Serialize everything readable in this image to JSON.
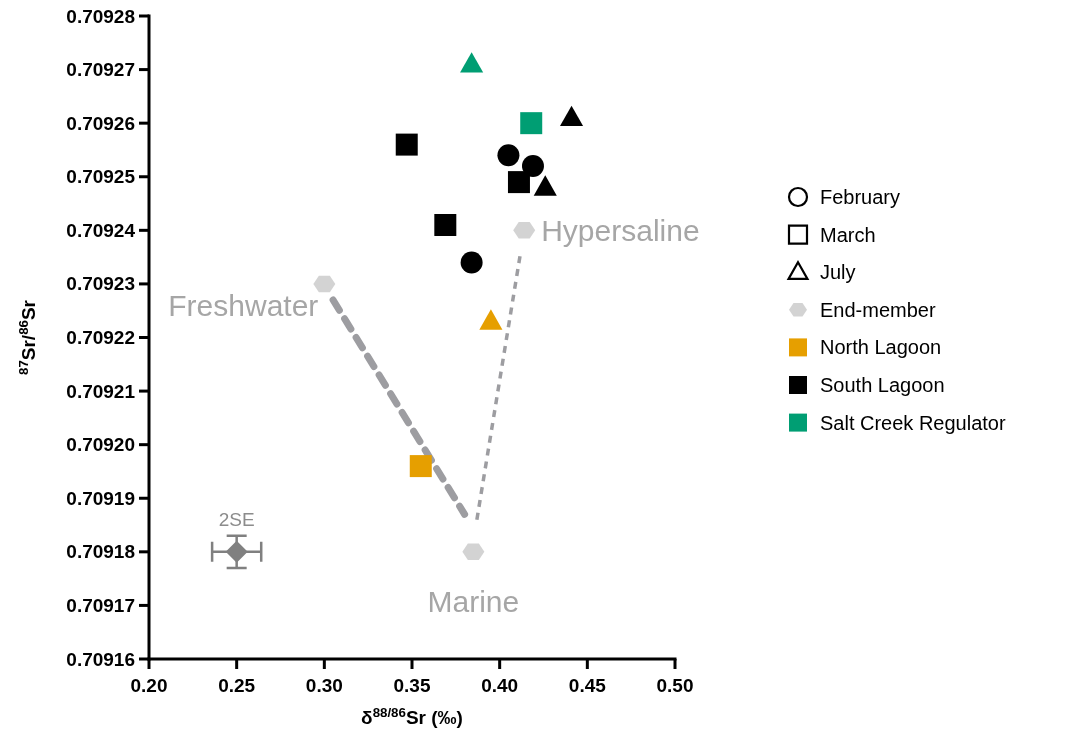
{
  "chart_data": {
    "type": "scatter",
    "xlabel": "δ$^{88/86}$Sr (‰)",
    "ylabel": "$^{87}$Sr/$^{86}$Sr",
    "xlim": [
      0.2,
      0.5
    ],
    "xticks": [
      {
        "value": 0.2,
        "label": "0.20"
      },
      0.25,
      {
        "value": 0.3,
        "label": "0.30"
      },
      0.35,
      {
        "value": 0.4,
        "label": "0.40"
      },
      0.45,
      {
        "value": 0.5,
        "label": "0.50"
      }
    ],
    "ylim": [
      0.70916,
      0.70928
    ],
    "yticks": [
      0.70916,
      0.70917,
      0.70918,
      0.70919,
      {
        "value": 0.7092,
        "label": "0.70920"
      },
      0.70921,
      0.70922,
      0.70923,
      0.70924,
      0.70925,
      0.70926,
      0.70927,
      0.70928
    ],
    "grid": false,
    "legend": "right",
    "series": [
      {
        "type": "line",
        "line_style": "dashed",
        "color": "#9d9da1",
        "x": [
          0.305,
          0.38
        ],
        "values": [
          0.709227,
          0.709187
        ]
      },
      {
        "type": "line",
        "line_style": "dashed",
        "color": "#9d9da1",
        "x": [
          0.387,
          0.412
        ],
        "values": [
          0.709186,
          0.709236
        ]
      },
      {
        "marker": "circle",
        "color": "#000000",
        "x": [
          0.405,
          0.419,
          0.384
        ],
        "values": [
          0.709254,
          0.709252,
          0.709234
        ]
      },
      {
        "marker": "square",
        "color": "#000000",
        "x": [
          0.347,
          0.411,
          0.369
        ],
        "values": [
          0.709256,
          0.709249,
          0.709241
        ]
      },
      {
        "marker": "triangle",
        "color": "#000000",
        "x": [
          0.441,
          0.426
        ],
        "values": [
          0.709261,
          0.709248
        ]
      },
      {
        "marker": "square",
        "color": "#e69f00",
        "x": [
          0.355
        ],
        "values": [
          0.709196
        ]
      },
      {
        "marker": "triangle",
        "color": "#e69f00",
        "x": [
          0.395
        ],
        "values": [
          0.709223
        ]
      },
      {
        "marker": "square",
        "color": "#009e73",
        "x": [
          0.418
        ],
        "values": [
          0.70926
        ]
      },
      {
        "marker": "triangle",
        "color": "#009e73",
        "x": [
          0.384
        ],
        "values": [
          0.709271
        ]
      },
      {
        "marker": "diamond",
        "color": "#808080",
        "x": [
          0.25
        ],
        "values": [
          0.70918
        ],
        "errors": [
          3e-06
        ],
        "xerrors": [
          0.014
        ]
      },
      {
        "name": "February",
        "marker": "circle"
      },
      {
        "name": "March",
        "marker": "square"
      },
      {
        "name": "July",
        "marker": "triangle"
      },
      {
        "name": "End-member",
        "color": "#d3d3d3",
        "x": [
          0.3,
          0.414,
          0.385
        ],
        "values": [
          0.70923,
          0.70924,
          0.70918
        ]
      },
      {
        "name": "North Lagoon",
        "marker": "square",
        "color": "#e69f00"
      },
      {
        "name": "South Lagoon",
        "marker": "square",
        "color": "#000000"
      },
      {
        "name": "Salt Creek Regulator",
        "marker": "square",
        "color": "#009e73"
      }
    ],
    "annotations": [
      {
        "text": "Freshwater",
        "x": 0.3,
        "y": 0.70923
      },
      {
        "text": "Hypersaline",
        "x": 0.414,
        "y": 0.70924
      },
      {
        "text": "Marine",
        "x": 0.385,
        "y": 0.70918
      },
      {
        "text": "2SE",
        "x": 0.25,
        "y": 0.70918
      }
    ]
  }
}
